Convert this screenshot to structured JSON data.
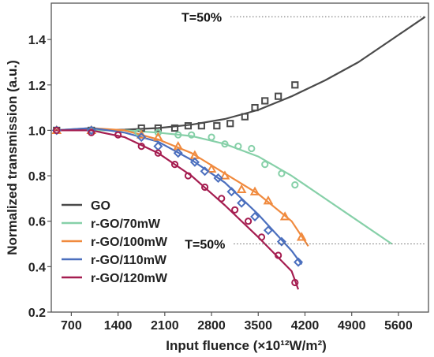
{
  "chart_data": {
    "type": "scatter",
    "xlabel": "Input fluence (×10¹²W/m²)",
    "ylabel": "Normalized transmission (a.u.)",
    "xlim": [
      400,
      6050
    ],
    "ylim": [
      0.2,
      1.56
    ],
    "x_ticks": [
      700,
      1400,
      2100,
      2800,
      3500,
      4200,
      4900,
      5600
    ],
    "y_ticks": [
      0.2,
      0.4,
      0.6,
      0.8,
      1.0,
      1.2,
      1.4
    ],
    "x_tick_labels": [
      "700",
      "1400",
      "2100",
      "2800",
      "3500",
      "4200",
      "4900",
      "5600"
    ],
    "y_tick_labels": [
      "0.2",
      "0.4",
      "0.6",
      "0.8",
      "1.0",
      "1.2",
      "1.4"
    ],
    "legend_position": "bottom-left",
    "annotations": [
      {
        "text": "T=50%",
        "x": 2350,
        "y": 1.5,
        "line_to_x": 6000
      },
      {
        "text": "T=50%",
        "x": 2400,
        "y": 0.5,
        "line_to_x": 6000
      }
    ],
    "series": [
      {
        "name": "GO",
        "color": "#4a4a4a",
        "marker": "square",
        "points": [
          [
            480,
            1.0
          ],
          [
            1000,
            1.0
          ],
          [
            1750,
            1.01
          ],
          [
            2000,
            1.01
          ],
          [
            2250,
            1.01
          ],
          [
            2450,
            1.02
          ],
          [
            2650,
            1.02
          ],
          [
            2880,
            1.02
          ],
          [
            3080,
            1.03
          ],
          [
            3300,
            1.06
          ],
          [
            3450,
            1.1
          ],
          [
            3600,
            1.13
          ],
          [
            3800,
            1.15
          ],
          [
            4050,
            1.2
          ]
        ],
        "fit": [
          [
            450,
            1.0
          ],
          [
            1000,
            1.0
          ],
          [
            1500,
            1.003
          ],
          [
            2000,
            1.01
          ],
          [
            2500,
            1.025
          ],
          [
            3000,
            1.05
          ],
          [
            3500,
            1.09
          ],
          [
            4000,
            1.15
          ],
          [
            4500,
            1.22
          ],
          [
            5000,
            1.3
          ],
          [
            5500,
            1.4
          ],
          [
            6000,
            1.5
          ]
        ]
      },
      {
        "name": "r-GO/70mW",
        "color": "#86d0a8",
        "marker": "circle",
        "points": [
          [
            480,
            1.0
          ],
          [
            1000,
            1.0
          ],
          [
            1700,
            0.99
          ],
          [
            2000,
            0.99
          ],
          [
            2300,
            0.98
          ],
          [
            2500,
            0.98
          ],
          [
            2800,
            0.97
          ],
          [
            3000,
            0.94
          ],
          [
            3200,
            0.93
          ],
          [
            3400,
            0.92
          ],
          [
            3600,
            0.85
          ],
          [
            3850,
            0.81
          ],
          [
            4050,
            0.76
          ]
        ],
        "fit": [
          [
            450,
            1.0
          ],
          [
            1000,
            1.0
          ],
          [
            1500,
            1.0
          ],
          [
            2000,
            0.99
          ],
          [
            2500,
            0.975
          ],
          [
            3000,
            0.94
          ],
          [
            3500,
            0.885
          ],
          [
            4000,
            0.8
          ],
          [
            4500,
            0.7
          ],
          [
            5000,
            0.6
          ],
          [
            5500,
            0.5
          ]
        ]
      },
      {
        "name": "r-GO/100mW",
        "color": "#f08a3e",
        "marker": "triangle",
        "points": [
          [
            480,
            1.0
          ],
          [
            1000,
            1.0
          ],
          [
            1750,
            0.98
          ],
          [
            2000,
            0.97
          ],
          [
            2300,
            0.93
          ],
          [
            2550,
            0.89
          ],
          [
            2800,
            0.83
          ],
          [
            3000,
            0.8
          ],
          [
            3250,
            0.74
          ],
          [
            3450,
            0.73
          ],
          [
            3650,
            0.69
          ],
          [
            3900,
            0.62
          ],
          [
            4150,
            0.53
          ]
        ],
        "fit": [
          [
            450,
            1.0
          ],
          [
            1000,
            1.01
          ],
          [
            1500,
            1.0
          ],
          [
            2000,
            0.96
          ],
          [
            2500,
            0.9
          ],
          [
            3000,
            0.81
          ],
          [
            3500,
            0.72
          ],
          [
            4000,
            0.6
          ],
          [
            4250,
            0.49
          ]
        ]
      },
      {
        "name": "r-GO/110mW",
        "color": "#4b6fbe",
        "marker": "diamond",
        "points": [
          [
            480,
            1.0
          ],
          [
            1000,
            1.0
          ],
          [
            1750,
            0.97
          ],
          [
            2000,
            0.93
          ],
          [
            2300,
            0.9
          ],
          [
            2550,
            0.86
          ],
          [
            2700,
            0.82
          ],
          [
            2900,
            0.79
          ],
          [
            3100,
            0.73
          ],
          [
            3250,
            0.68
          ],
          [
            3450,
            0.62
          ],
          [
            3650,
            0.56
          ],
          [
            3850,
            0.51
          ],
          [
            4100,
            0.42
          ]
        ],
        "fit": [
          [
            450,
            1.0
          ],
          [
            1000,
            1.01
          ],
          [
            1500,
            0.99
          ],
          [
            2000,
            0.95
          ],
          [
            2500,
            0.87
          ],
          [
            3000,
            0.77
          ],
          [
            3500,
            0.63
          ],
          [
            4000,
            0.47
          ],
          [
            4150,
            0.41
          ]
        ]
      },
      {
        "name": "r-GO/120mW",
        "color": "#a51d50",
        "marker": "circle",
        "points": [
          [
            480,
            1.0
          ],
          [
            1000,
            0.99
          ],
          [
            1400,
            0.98
          ],
          [
            1750,
            0.93
          ],
          [
            2000,
            0.9
          ],
          [
            2250,
            0.85
          ],
          [
            2450,
            0.8
          ],
          [
            2700,
            0.75
          ],
          [
            2950,
            0.7
          ],
          [
            3150,
            0.65
          ],
          [
            3350,
            0.6
          ],
          [
            3550,
            0.53
          ],
          [
            3800,
            0.45
          ],
          [
            4050,
            0.33
          ]
        ],
        "fit": [
          [
            450,
            1.0
          ],
          [
            1000,
            1.0
          ],
          [
            1500,
            0.97
          ],
          [
            2000,
            0.9
          ],
          [
            2500,
            0.8
          ],
          [
            3000,
            0.67
          ],
          [
            3500,
            0.53
          ],
          [
            4000,
            0.38
          ],
          [
            4100,
            0.3
          ]
        ]
      }
    ]
  }
}
